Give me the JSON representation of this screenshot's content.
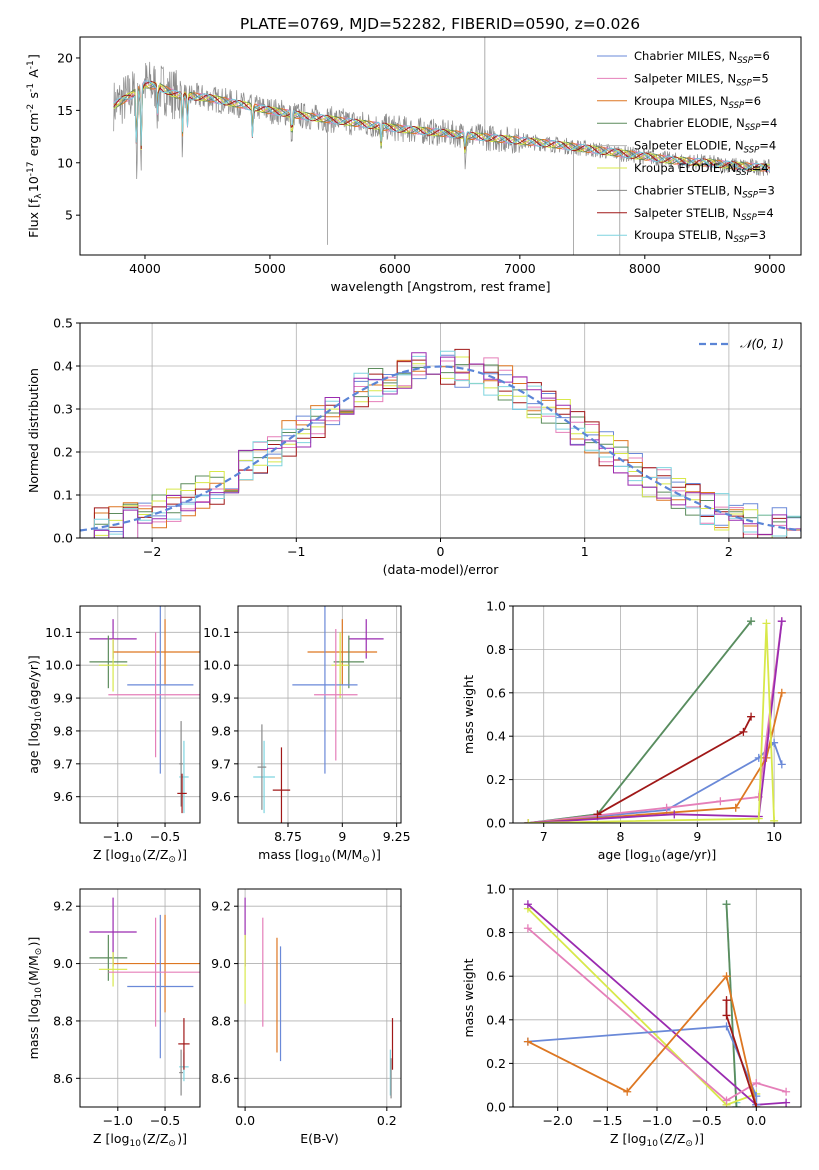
{
  "figure": {
    "title": "PLATE=0769, MJD=52282, FIBERID=0590, z=0.026"
  },
  "colors": {
    "c0": "#6a89d8",
    "c1": "#e57fb9",
    "c2": "#dd7722",
    "c3": "#5c8c5c",
    "c4": "#d8e84a",
    "c5": "#b8b8b8",
    "c6": "#8a8a8a",
    "c7": "#a01818",
    "c8": "#7ed4df",
    "purple": "#9a2bb0"
  },
  "chart_data": [
    {
      "id": "spectrum",
      "type": "line",
      "xlabel": "wavelength [Angstrom, rest frame]",
      "ylabel": "Flux [f$_\\lambda$10$^{-17}$ erg cm$^{-2}$ s$^{-1}$ A$^{-1}$]",
      "xlim": [
        3480,
        9250
      ],
      "ylim": [
        1.2,
        22.0
      ],
      "xticks": [
        4000,
        5000,
        6000,
        7000,
        8000,
        9000
      ],
      "yticks": [
        5,
        10,
        15,
        20
      ],
      "grid": false,
      "legend_position": "top-right",
      "legend": [
        {
          "label": "Chabrier MILES, N",
          "sub": "SSP",
          "tail": "=6"
        },
        {
          "label": "Salpeter MILES, N",
          "sub": "SSP",
          "tail": "=5"
        },
        {
          "label": "Kroupa MILES, N",
          "sub": "SSP",
          "tail": "=6"
        },
        {
          "label": "Chabrier ELODIE, N",
          "sub": "SSP",
          "tail": "=4"
        },
        {
          "label": "Salpeter ELODIE, N",
          "sub": "SSP",
          "tail": "=4"
        },
        {
          "label": "Kroupa ELODIE, N",
          "sub": "SSP",
          "tail": "=4"
        },
        {
          "label": "Chabrier STELIB, N",
          "sub": "SSP",
          "tail": "=3"
        },
        {
          "label": "Salpeter STELIB, N",
          "sub": "SSP",
          "tail": "=4"
        },
        {
          "label": "Kroupa STELIB, N",
          "sub": "SSP",
          "tail": "=3"
        }
      ],
      "continuum_x": [
        3750,
        3900,
        4000,
        4100,
        4250,
        4500,
        4750,
        5000,
        5250,
        5500,
        5750,
        6000,
        6250,
        6500,
        6750,
        7000,
        7250,
        7500,
        7750,
        8000,
        8250,
        8500,
        8750,
        9000
      ],
      "continuum_y": [
        15.5,
        16.5,
        17.5,
        17.3,
        16.5,
        16.2,
        15.6,
        15.0,
        14.5,
        14.1,
        13.7,
        13.3,
        13.0,
        12.7,
        12.4,
        12.1,
        11.8,
        11.4,
        11.0,
        10.6,
        10.2,
        10.0,
        9.7,
        9.5
      ]
    },
    {
      "id": "residuals",
      "type": "histogram",
      "xlabel": "(data-model)/error",
      "ylabel": "Normed distribution",
      "xlim": [
        -2.5,
        2.5
      ],
      "ylim": [
        0,
        0.5
      ],
      "xticks": [
        -2,
        -1,
        0,
        1,
        2
      ],
      "yticks": [
        0.0,
        0.1,
        0.2,
        0.3,
        0.4,
        0.5
      ],
      "grid": true,
      "legend_position": "top-right",
      "legend": [
        {
          "label": "𝒩(0, 1)"
        }
      ],
      "curve": {
        "type": "normal",
        "mu": 0,
        "sigma": 1
      }
    },
    {
      "id": "Z_age",
      "type": "scatter",
      "xlabel": "Z [log$_{10}$(Z/Z$_\\odot$)]",
      "ylabel": "age  [log$_{10}$(age/yr)]",
      "xlim": [
        -1.4,
        -0.13
      ],
      "ylim": [
        9.52,
        10.18
      ],
      "xticks": [
        -1.0,
        -0.5
      ],
      "yticks": [
        9.6,
        9.7,
        9.8,
        9.9,
        10.0,
        10.1
      ],
      "grid": true,
      "points": [
        {
          "c": "purple",
          "x": -1.05,
          "y": 10.08,
          "xerr": 0.25,
          "yerr": 0.06
        },
        {
          "c": "c2",
          "x": -0.5,
          "y": 10.04,
          "xerr": 0.55,
          "yerr": 0.1
        },
        {
          "c": "c3",
          "x": -1.1,
          "y": 10.01,
          "xerr": 0.2,
          "yerr": 0.08
        },
        {
          "c": "c4",
          "x": -1.05,
          "y": 10.0,
          "xerr": 0.15,
          "yerr": 0.08
        },
        {
          "c": "c0",
          "x": -0.55,
          "y": 9.94,
          "xerr": 0.35,
          "yerr": 0.27
        },
        {
          "c": "c1",
          "x": -0.6,
          "y": 9.91,
          "xerr": 0.5,
          "yerr": 0.19
        },
        {
          "c": "c8",
          "x": -0.3,
          "y": 9.66,
          "xerr": 0.05,
          "yerr": 0.11
        },
        {
          "c": "c6",
          "x": -0.33,
          "y": 9.7,
          "xerr": 0.02,
          "yerr": 0.13
        },
        {
          "c": "c7",
          "x": -0.32,
          "y": 9.61,
          "xerr": 0.05,
          "yerr": 0.06
        }
      ]
    },
    {
      "id": "mass_age",
      "type": "scatter",
      "xlabel": "mass [log$_{10}$(M/M$_\\odot$)]",
      "ylabel": "",
      "xlim": [
        8.52,
        9.27
      ],
      "ylim": [
        9.52,
        10.18
      ],
      "xticks": [
        8.75,
        9.0,
        9.25
      ],
      "yticks": [
        9.6,
        9.7,
        9.8,
        9.9,
        10.0,
        10.1
      ],
      "grid": true,
      "points": [
        {
          "c": "purple",
          "x": 9.11,
          "y": 10.08,
          "xerr": 0.08,
          "yerr": 0.06
        },
        {
          "c": "c2",
          "x": 9.0,
          "y": 10.04,
          "xerr": 0.16,
          "yerr": 0.1
        },
        {
          "c": "c3",
          "x": 9.03,
          "y": 10.01,
          "xerr": 0.07,
          "yerr": 0.08
        },
        {
          "c": "c4",
          "x": 8.99,
          "y": 10.0,
          "xerr": 0.04,
          "yerr": 0.1
        },
        {
          "c": "c0",
          "x": 8.92,
          "y": 9.94,
          "xerr": 0.15,
          "yerr": 0.27
        },
        {
          "c": "c1",
          "x": 8.97,
          "y": 9.91,
          "xerr": 0.1,
          "yerr": 0.2
        },
        {
          "c": "c8",
          "x": 8.64,
          "y": 9.66,
          "xerr": 0.05,
          "yerr": 0.11
        },
        {
          "c": "c6",
          "x": 8.63,
          "y": 9.69,
          "xerr": 0.02,
          "yerr": 0.13
        },
        {
          "c": "c7",
          "x": 8.72,
          "y": 9.62,
          "xerr": 0.04,
          "yerr": 0.13
        }
      ]
    },
    {
      "id": "age_weight",
      "type": "line",
      "xlabel": "age  [log$_{10}$(age/yr)]",
      "ylabel": "mass weight",
      "xlim": [
        6.6,
        10.35
      ],
      "ylim": [
        0,
        1.0
      ],
      "xticks": [
        7,
        8,
        9,
        10
      ],
      "yticks": [
        0.0,
        0.2,
        0.4,
        0.6,
        0.8,
        1.0
      ],
      "grid": true,
      "series": [
        {
          "c": "c8",
          "x": [
            6.8,
            7.7,
            9.7
          ],
          "y": [
            0.0,
            0.04,
            0.93
          ]
        },
        {
          "c": "c3",
          "x": [
            6.8,
            7.7,
            9.7
          ],
          "y": [
            0.0,
            0.04,
            0.93
          ]
        },
        {
          "c": "c0",
          "x": [
            6.8,
            7.7,
            8.6,
            9.8,
            10.0,
            10.1
          ],
          "y": [
            0.0,
            0.03,
            0.06,
            0.3,
            0.37,
            0.27
          ]
        },
        {
          "c": "c1",
          "x": [
            6.8,
            8.6,
            9.3,
            9.8,
            10.1
          ],
          "y": [
            0.0,
            0.07,
            0.1,
            0.12,
            0.93
          ]
        },
        {
          "c": "c2",
          "x": [
            6.8,
            9.5,
            9.9,
            10.1
          ],
          "y": [
            0.0,
            0.07,
            0.3,
            0.6
          ]
        },
        {
          "c": "purple",
          "x": [
            6.8,
            8.7,
            9.8,
            10.1
          ],
          "y": [
            0.0,
            0.04,
            0.03,
            0.93
          ]
        },
        {
          "c": "c7",
          "x": [
            7.7,
            9.6,
            9.7
          ],
          "y": [
            0.04,
            0.42,
            0.49
          ]
        },
        {
          "c": "c4",
          "x": [
            6.8,
            9.8,
            9.9,
            10.0
          ],
          "y": [
            0.0,
            0.02,
            0.92,
            0.01
          ]
        }
      ]
    },
    {
      "id": "Z_mass",
      "type": "scatter",
      "xlabel": "Z [log$_{10}$(Z/Z$_\\odot$)]",
      "ylabel": "mass [log$_{10}$(M/M$_\\odot$)]",
      "xlim": [
        -1.4,
        -0.13
      ],
      "ylim": [
        8.5,
        9.26
      ],
      "xticks": [
        -1.0,
        -0.5
      ],
      "yticks": [
        8.6,
        8.8,
        9.0,
        9.2
      ],
      "grid": true,
      "points": [
        {
          "c": "purple",
          "x": -1.05,
          "y": 9.11,
          "xerr": 0.25,
          "yerr": 0.12
        },
        {
          "c": "c2",
          "x": -0.5,
          "y": 9.0,
          "xerr": 0.55,
          "yerr": 0.17
        },
        {
          "c": "c3",
          "x": -1.1,
          "y": 9.02,
          "xerr": 0.2,
          "yerr": 0.08
        },
        {
          "c": "c4",
          "x": -1.05,
          "y": 8.98,
          "xerr": 0.15,
          "yerr": 0.06
        },
        {
          "c": "c0",
          "x": -0.55,
          "y": 8.92,
          "xerr": 0.35,
          "yerr": 0.25
        },
        {
          "c": "c1",
          "x": -0.6,
          "y": 8.97,
          "xerr": 0.5,
          "yerr": 0.19
        },
        {
          "c": "c8",
          "x": -0.3,
          "y": 8.64,
          "xerr": 0.05,
          "yerr": 0.05
        },
        {
          "c": "c6",
          "x": -0.33,
          "y": 8.62,
          "xerr": 0.02,
          "yerr": 0.08
        },
        {
          "c": "c7",
          "x": -0.3,
          "y": 8.72,
          "xerr": 0.06,
          "yerr": 0.09
        }
      ]
    },
    {
      "id": "ebv_mass",
      "type": "scatter",
      "xlabel": "E(B-V)",
      "ylabel": "",
      "xlim": [
        -0.01,
        0.22
      ],
      "ylim": [
        8.5,
        9.26
      ],
      "xticks": [
        0.0,
        0.2
      ],
      "yticks": [
        8.6,
        8.8,
        9.0,
        9.2
      ],
      "grid": true,
      "points": [
        {
          "c": "purple",
          "x": 0.0,
          "y": 9.11,
          "yerr": 0.12
        },
        {
          "c": "c4",
          "x": 0.0,
          "y": 8.98,
          "yerr": 0.12
        },
        {
          "c": "c1",
          "x": 0.025,
          "y": 8.97,
          "yerr": 0.19
        },
        {
          "c": "c2",
          "x": 0.045,
          "y": 8.89,
          "yerr": 0.2
        },
        {
          "c": "c0",
          "x": 0.05,
          "y": 8.86,
          "yerr": 0.2
        },
        {
          "c": "c7",
          "x": 0.208,
          "y": 8.72,
          "yerr": 0.09
        },
        {
          "c": "c8",
          "x": 0.205,
          "y": 8.62,
          "yerr": 0.08
        },
        {
          "c": "c6",
          "x": 0.206,
          "y": 8.6,
          "yerr": 0.07
        }
      ]
    },
    {
      "id": "Z_weight",
      "type": "line",
      "xlabel": "Z [log$_{10}$(Z/Z$_\\odot$)]",
      "ylabel": "mass weight",
      "xlim": [
        -2.45,
        0.45
      ],
      "ylim": [
        0,
        1.0
      ],
      "xticks": [
        -2.0,
        -1.5,
        -1.0,
        -0.5,
        0.0
      ],
      "yticks": [
        0.0,
        0.2,
        0.4,
        0.6,
        0.8,
        1.0
      ],
      "grid": true,
      "series": [
        {
          "c": "c8",
          "x": [
            -0.3,
            -0.2,
            -0.2
          ],
          "y": [
            0.93,
            0.02,
            0.0
          ]
        },
        {
          "c": "c3",
          "x": [
            -0.3,
            -0.2
          ],
          "y": [
            0.93,
            0.0
          ]
        },
        {
          "c": "c4",
          "x": [
            -2.3,
            -0.3,
            0.0
          ],
          "y": [
            0.91,
            0.01,
            0.06
          ]
        },
        {
          "c": "purple",
          "x": [
            -2.3,
            0.0,
            0.3
          ],
          "y": [
            0.93,
            0.01,
            0.02
          ]
        },
        {
          "c": "c1",
          "x": [
            -2.3,
            -0.3,
            0.0,
            0.3
          ],
          "y": [
            0.82,
            0.03,
            0.11,
            0.07
          ]
        },
        {
          "c": "c0",
          "x": [
            -2.3,
            -0.3,
            0.0,
            0.0
          ],
          "y": [
            0.3,
            0.37,
            0.05,
            0.01
          ]
        },
        {
          "c": "c2",
          "x": [
            -2.3,
            -1.3,
            -0.3,
            0.0
          ],
          "y": [
            0.3,
            0.07,
            0.6,
            0.0
          ]
        },
        {
          "c": "c7",
          "x": [
            -0.3,
            -0.3,
            0.0
          ],
          "y": [
            0.49,
            0.42,
            0.0
          ]
        }
      ]
    }
  ]
}
